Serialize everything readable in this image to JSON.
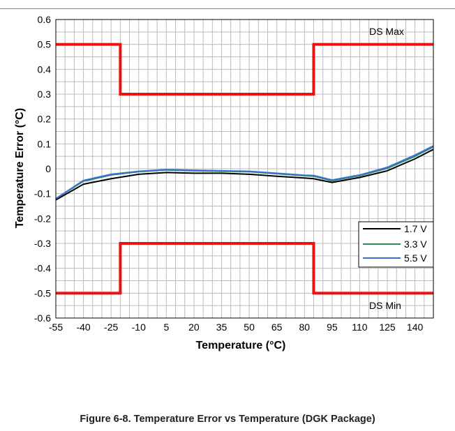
{
  "figure": {
    "caption": "Figure 6-8. Temperature Error vs Temperature (DGK Package)"
  },
  "chart_data": {
    "type": "line",
    "title": "",
    "xlabel": "Temperature (°C)",
    "ylabel": "Temperature Error (°C)",
    "xlim": [
      -55,
      150
    ],
    "ylim": [
      -0.6,
      0.6
    ],
    "x_ticks": [
      -55,
      -40,
      -25,
      -10,
      5,
      20,
      35,
      50,
      65,
      80,
      95,
      110,
      125,
      140
    ],
    "x_tick_labels": [
      "-55",
      "-40",
      "-25",
      "-10",
      "5",
      "20",
      "35",
      "50",
      "65",
      "80",
      "95",
      "110",
      "125",
      "140"
    ],
    "y_ticks": [
      -0.6,
      -0.5,
      -0.4,
      -0.3,
      -0.2,
      -0.1,
      0,
      0.1,
      0.2,
      0.3,
      0.4,
      0.5,
      0.6
    ],
    "y_tick_labels": [
      "-0.6",
      "-0.5",
      "-0.4",
      "-0.3",
      "-0.2",
      "-0.1",
      "0",
      "0.1",
      "0.2",
      "0.3",
      "0.4",
      "0.5",
      "0.6"
    ],
    "grid": true,
    "legend_position": "right",
    "series": [
      {
        "name": "1.7 V",
        "color": "#000000",
        "x": [
          -55,
          -40,
          -25,
          -10,
          5,
          20,
          35,
          50,
          65,
          80,
          85,
          95,
          110,
          125,
          140,
          150
        ],
        "y": [
          -0.125,
          -0.062,
          -0.04,
          -0.022,
          -0.015,
          -0.018,
          -0.018,
          -0.022,
          -0.03,
          -0.037,
          -0.04,
          -0.055,
          -0.035,
          -0.008,
          0.04,
          0.078
        ]
      },
      {
        "name": "3.3 V",
        "color": "#2e8b57",
        "x": [
          -55,
          -40,
          -25,
          -10,
          5,
          20,
          35,
          50,
          65,
          80,
          85,
          95,
          110,
          125,
          140,
          150
        ],
        "y": [
          -0.12,
          -0.05,
          -0.025,
          -0.012,
          -0.005,
          -0.008,
          -0.01,
          -0.012,
          -0.02,
          -0.028,
          -0.03,
          -0.048,
          -0.028,
          0.002,
          0.05,
          0.088
        ]
      },
      {
        "name": "5.5 V",
        "color": "#3a6fd8",
        "x": [
          -55,
          -40,
          -25,
          -10,
          5,
          20,
          35,
          50,
          65,
          80,
          85,
          95,
          110,
          125,
          140,
          150
        ],
        "y": [
          -0.12,
          -0.047,
          -0.022,
          -0.01,
          -0.003,
          -0.006,
          -0.008,
          -0.01,
          -0.018,
          -0.026,
          -0.027,
          -0.045,
          -0.025,
          0.006,
          0.055,
          0.092
        ]
      }
    ],
    "limits": [
      {
        "label": "DS Max",
        "color": "#ee1111",
        "x": [
          -55,
          -20,
          -20,
          85,
          85,
          150
        ],
        "y": [
          0.5,
          0.5,
          0.3,
          0.3,
          0.5,
          0.5
        ]
      },
      {
        "label": "DS Min",
        "color": "#ee1111",
        "x": [
          -55,
          -20,
          -20,
          85,
          85,
          150
        ],
        "y": [
          -0.5,
          -0.5,
          -0.3,
          -0.3,
          -0.5,
          -0.5
        ]
      }
    ]
  }
}
